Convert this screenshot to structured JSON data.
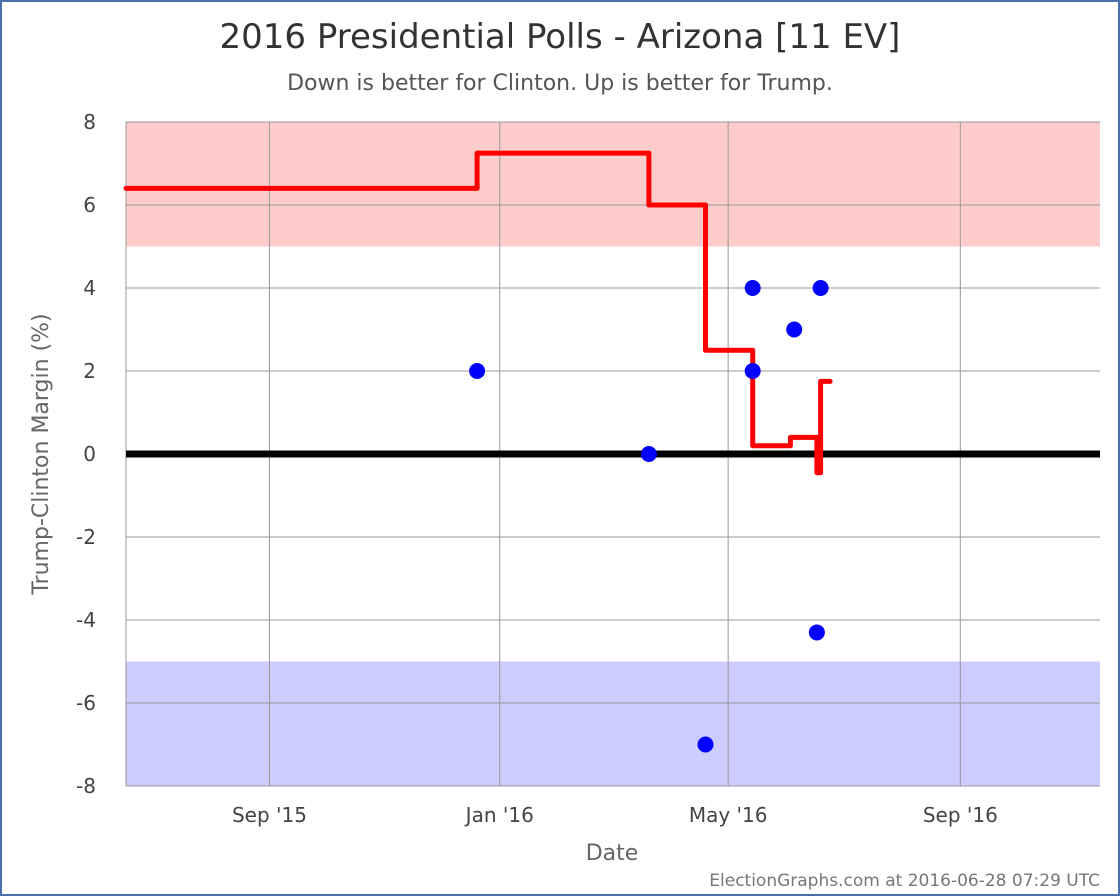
{
  "chart_data": {
    "type": "line",
    "title": "2016 Presidential Polls - Arizona [11 EV]",
    "subtitle": "Down is better for Clinton. Up is better for Trump.",
    "xlabel": "Date",
    "ylabel": "Trump-Clinton Margin (%)",
    "credit": "ElectionGraphs.com at 2016-06-28 07:29 UTC",
    "xlim": [
      "2015-06-17",
      "2016-11-14"
    ],
    "ylim": [
      -8,
      8
    ],
    "yticks": [
      8,
      6,
      4,
      2,
      0,
      -2,
      -4,
      -6,
      -8
    ],
    "yticklabels": [
      "8",
      "6",
      "4",
      "2",
      "0",
      "-2",
      "-4",
      "-6",
      "-8"
    ],
    "xticks": [
      "2015-09-01",
      "2016-01-01",
      "2016-05-01",
      "2016-09-01"
    ],
    "xticklabels": [
      "Sep '15",
      "Jan '16",
      "May '16",
      "Sep '16"
    ],
    "grid": true,
    "colors": {
      "trump_band": "#ffcccc",
      "clinton_band": "#ccccff",
      "average_line": "#ff0000",
      "poll_points": "#0000ff",
      "zero_line": "#000000"
    },
    "bands": [
      {
        "from": 5,
        "to": 8,
        "color": "#ffcccc"
      },
      {
        "from": -8,
        "to": -5,
        "color": "#ccccff"
      }
    ],
    "series": [
      {
        "type": "step-line",
        "points": [
          {
            "x": "2015-06-17",
            "y": 6.4
          },
          {
            "x": "2015-12-20",
            "y": 6.4
          },
          {
            "x": "2015-12-20",
            "y": 7.25
          },
          {
            "x": "2016-03-20",
            "y": 7.25
          },
          {
            "x": "2016-03-20",
            "y": 6.0
          },
          {
            "x": "2016-04-19",
            "y": 6.0
          },
          {
            "x": "2016-04-19",
            "y": 2.5
          },
          {
            "x": "2016-05-14",
            "y": 2.5
          },
          {
            "x": "2016-05-14",
            "y": 0.2
          },
          {
            "x": "2016-06-03",
            "y": 0.2
          },
          {
            "x": "2016-06-03",
            "y": 0.4
          },
          {
            "x": "2016-06-17",
            "y": 0.4
          },
          {
            "x": "2016-06-17",
            "y": -0.45
          },
          {
            "x": "2016-06-19",
            "y": -0.45
          },
          {
            "x": "2016-06-19",
            "y": 1.75
          },
          {
            "x": "2016-06-24",
            "y": 1.75
          }
        ]
      },
      {
        "type": "scatter",
        "points": [
          {
            "x": "2015-12-20",
            "y": 2
          },
          {
            "x": "2016-03-20",
            "y": 0
          },
          {
            "x": "2016-04-19",
            "y": -7
          },
          {
            "x": "2016-05-14",
            "y": 4
          },
          {
            "x": "2016-05-14",
            "y": 2
          },
          {
            "x": "2016-06-05",
            "y": 3
          },
          {
            "x": "2016-06-17",
            "y": -4.3
          },
          {
            "x": "2016-06-19",
            "y": 4
          }
        ]
      }
    ]
  }
}
